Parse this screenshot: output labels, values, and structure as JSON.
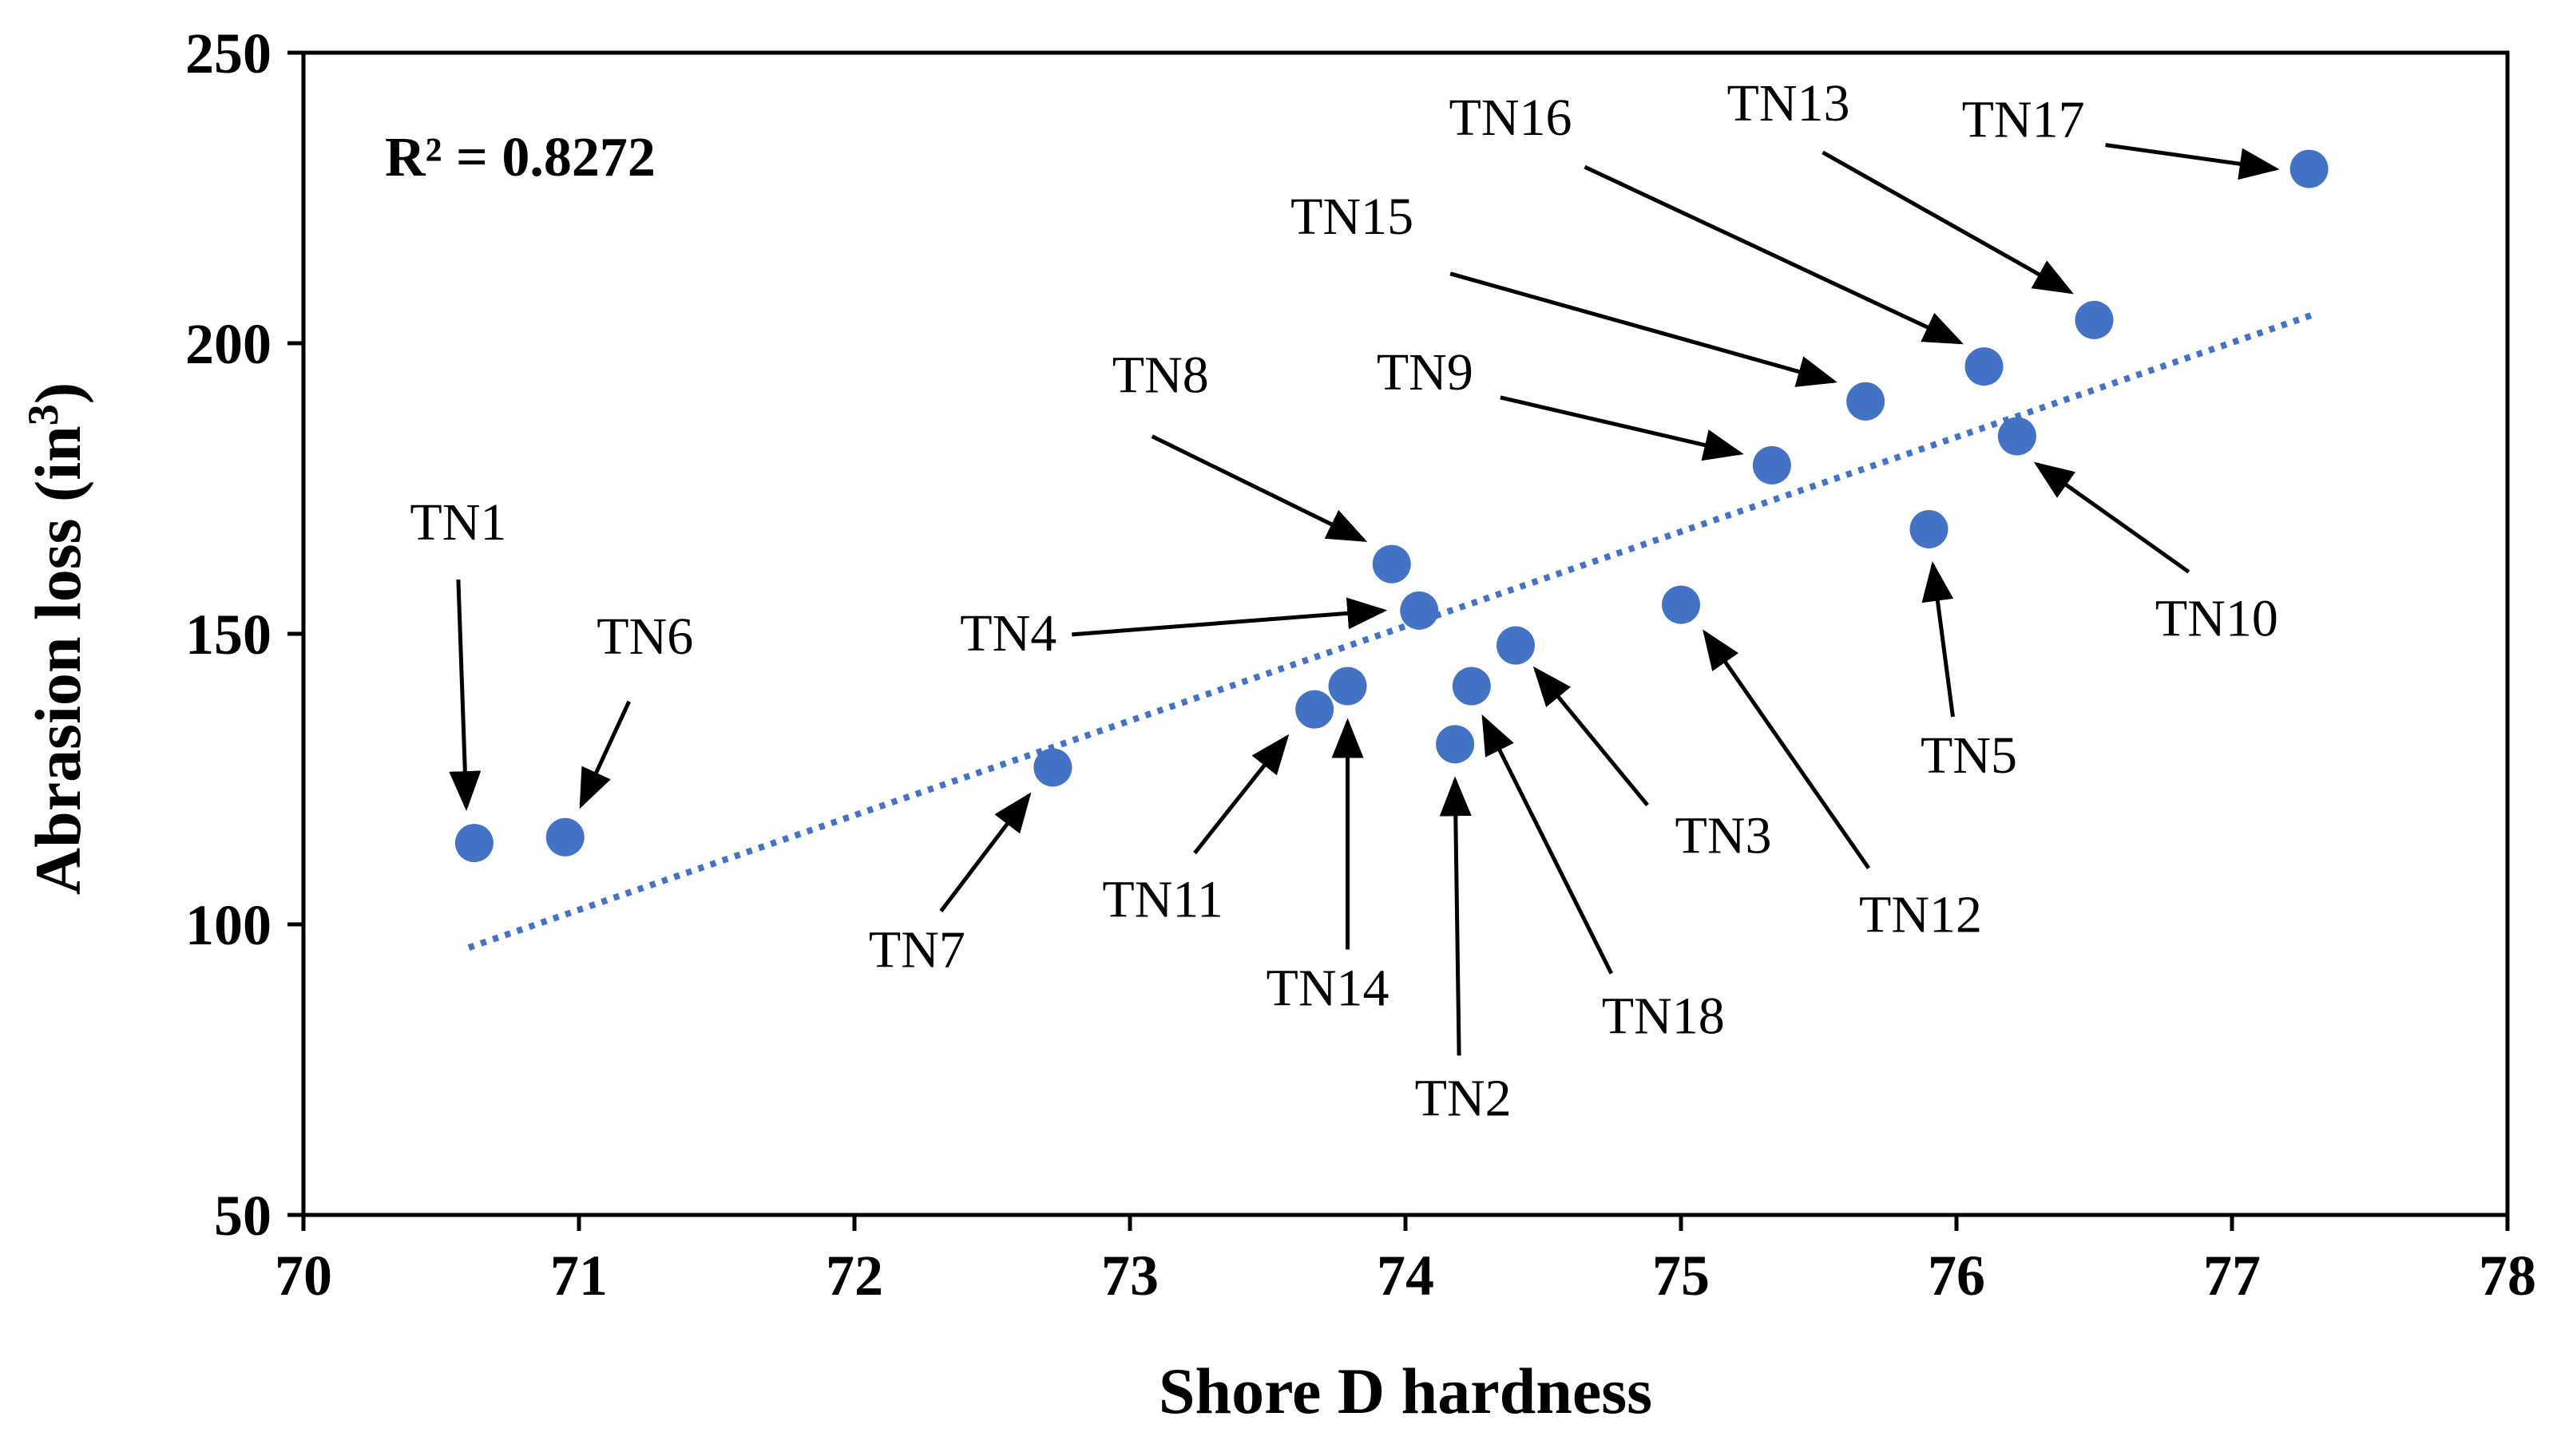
{
  "chart_data": {
    "type": "scatter",
    "title": "",
    "xlabel": "Shore D hardness",
    "ylabel": "Abrasion loss (in",
    "ylabel_superscript": "3",
    "ylabel_close": ")",
    "xlim": [
      70,
      78
    ],
    "ylim": [
      50,
      250
    ],
    "xticks": [
      "70",
      "71",
      "72",
      "73",
      "74",
      "75",
      "76",
      "77",
      "78"
    ],
    "yticks": [
      "50",
      "100",
      "150",
      "200",
      "250"
    ],
    "grid": false,
    "marker_color": "#4472C4",
    "trendline": {
      "type": "linear",
      "style": "dotted",
      "color": "#4472C4",
      "x": [
        70.6,
        77.3
      ],
      "y": [
        96,
        205
      ]
    },
    "r_squared_label": "R² = 0.8272",
    "points": [
      {
        "label": "TN1",
        "x": 70.62,
        "y": 114
      },
      {
        "label": "TN2",
        "x": 74.18,
        "y": 131
      },
      {
        "label": "TN3",
        "x": 74.4,
        "y": 148
      },
      {
        "label": "TN4",
        "x": 74.05,
        "y": 154
      },
      {
        "label": "TN5",
        "x": 75.9,
        "y": 168
      },
      {
        "label": "TN6",
        "x": 70.95,
        "y": 115
      },
      {
        "label": "TN7",
        "x": 72.72,
        "y": 127
      },
      {
        "label": "TN8",
        "x": 73.95,
        "y": 162
      },
      {
        "label": "TN9",
        "x": 75.33,
        "y": 179
      },
      {
        "label": "TN10",
        "x": 76.22,
        "y": 184
      },
      {
        "label": "TN11",
        "x": 73.67,
        "y": 137
      },
      {
        "label": "TN12",
        "x": 75.0,
        "y": 155
      },
      {
        "label": "TN13",
        "x": 76.5,
        "y": 204
      },
      {
        "label": "TN14",
        "x": 73.79,
        "y": 141
      },
      {
        "label": "TN15",
        "x": 75.67,
        "y": 190
      },
      {
        "label": "TN16",
        "x": 76.1,
        "y": 196
      },
      {
        "label": "TN17",
        "x": 77.28,
        "y": 230
      },
      {
        "label": "TN18",
        "x": 74.24,
        "y": 141
      }
    ]
  }
}
